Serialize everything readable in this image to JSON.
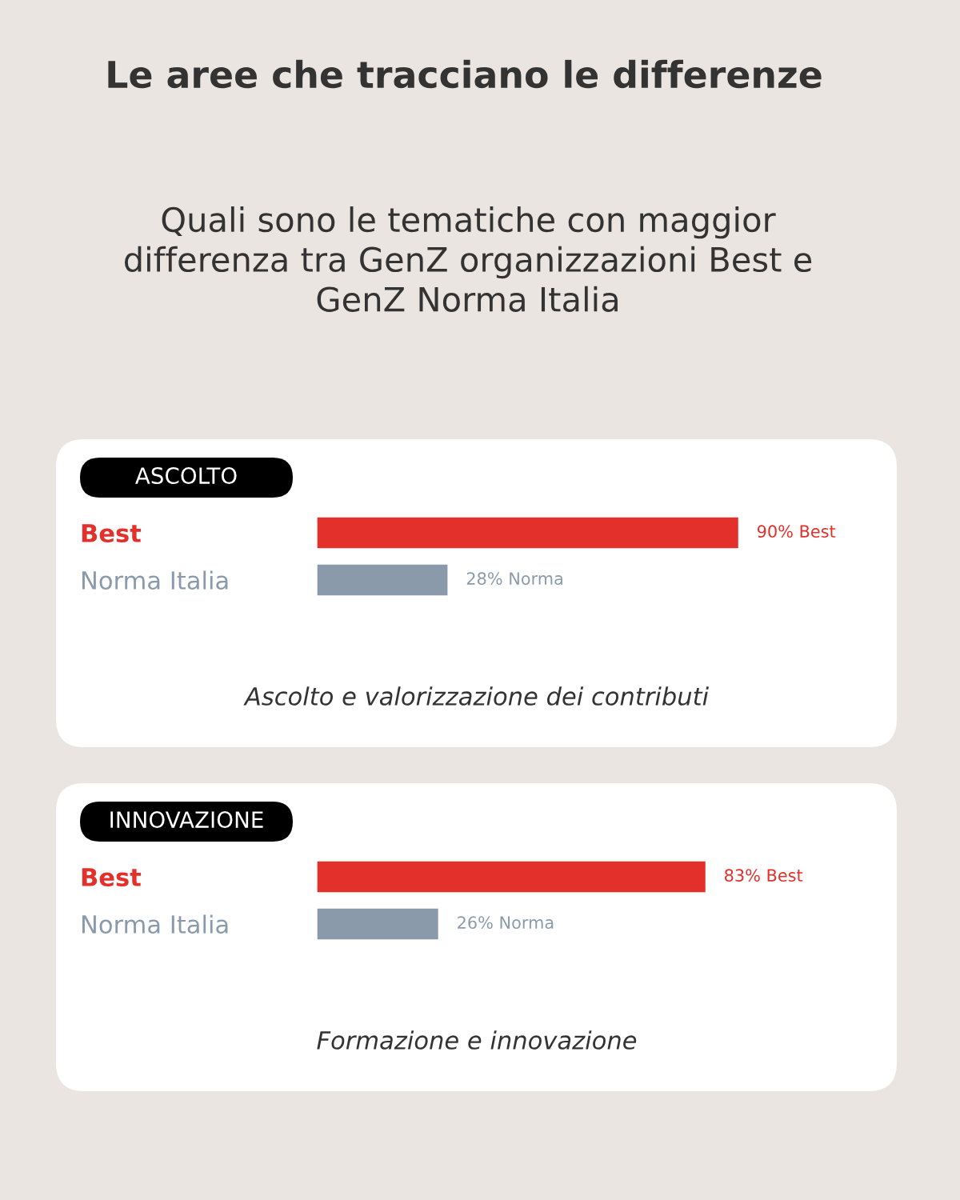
{
  "chart_data": [
    {
      "type": "other",
      "title": "Le aree che tracciano le differenze",
      "subtitle": "Quali sono le tematiche con maggior differenza tra GenZ organizzazioni Best e GenZ Norma Italia"
    },
    {
      "type": "bar",
      "orientation": "horizontal",
      "title": "ASCOLTO",
      "categories": [
        "Best",
        "Norma Italia"
      ],
      "values": [
        90,
        28
      ],
      "colors": [
        "#e3302a",
        "#8a9aaa"
      ],
      "value_labels": [
        "90% Best",
        "28% Norma"
      ],
      "tick_labels": "y",
      "annotations": [
        "Ascolto e valorizzazione dei contributi"
      ]
    },
    {
      "type": "bar",
      "orientation": "horizontal",
      "title": "INNOVAZIONE",
      "categories": [
        "Best",
        "Norma Italia"
      ],
      "values": [
        83,
        26
      ],
      "colors": [
        "#e3302a",
        "#8a9aaa"
      ],
      "value_labels": [
        "83% Best",
        "26% Norma"
      ],
      "tick_labels": "y",
      "annotations": [
        "Formazione e innovazione"
      ]
    }
  ]
}
